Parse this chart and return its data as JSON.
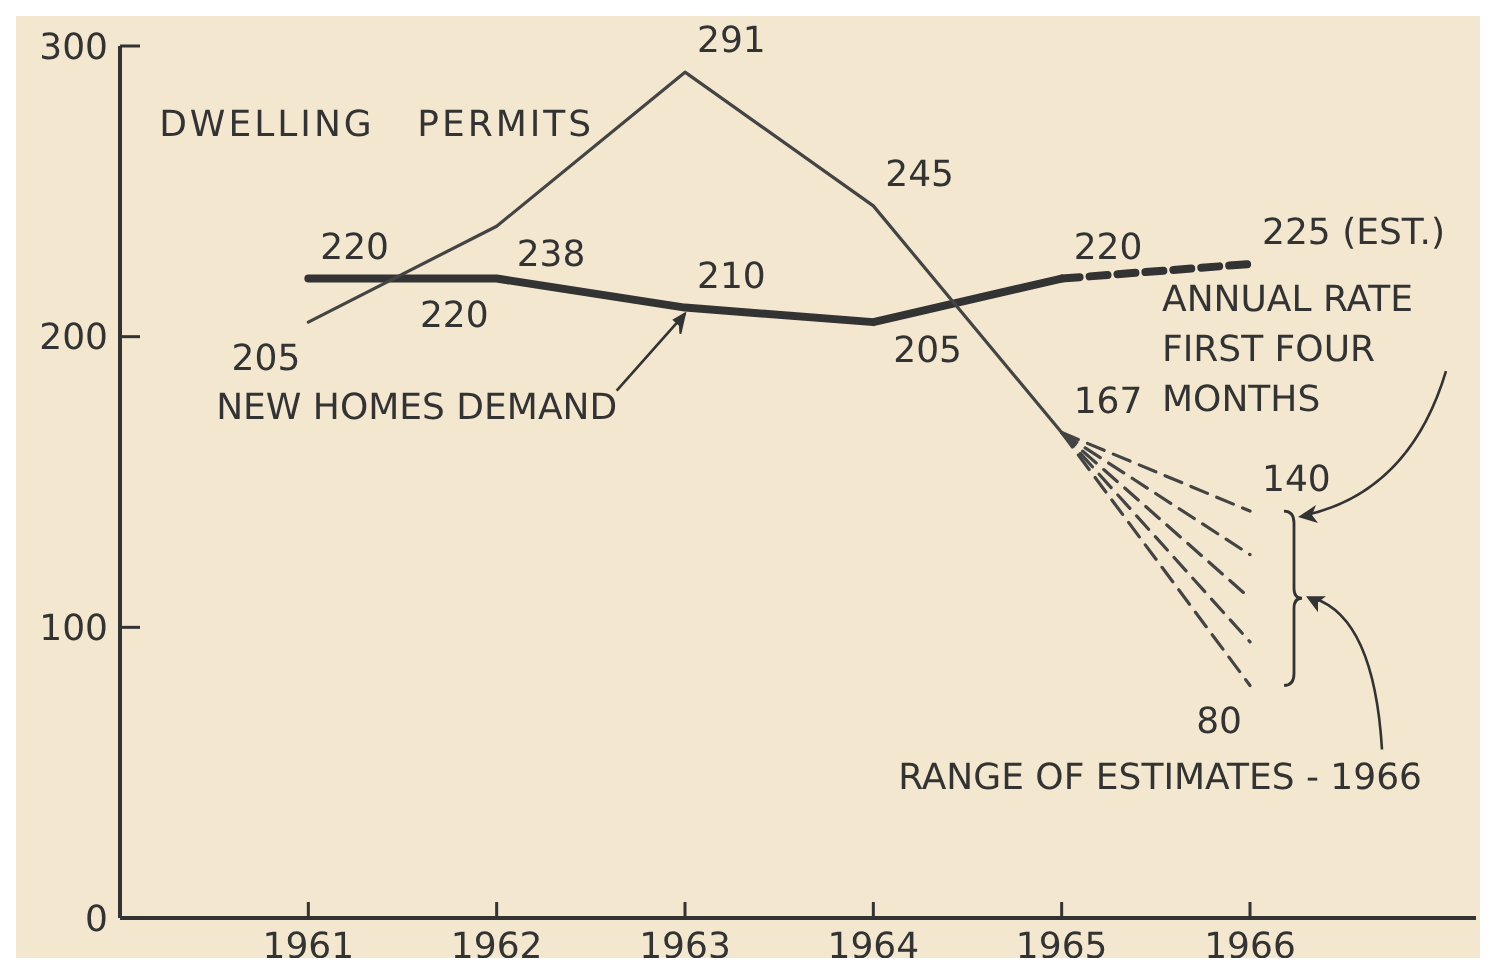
{
  "chart_data": {
    "type": "line",
    "x": [
      1961,
      1962,
      1963,
      1964,
      1965,
      1966
    ],
    "xlim": [
      1960,
      1967.2
    ],
    "xticks": [
      1961,
      1962,
      1963,
      1964,
      1965,
      1966
    ],
    "ylim": [
      0,
      300
    ],
    "yticks": [
      0,
      100,
      200,
      300
    ],
    "grid": false,
    "marker": "none",
    "series": [
      {
        "name": "NEW HOMES DEMAND",
        "color": "#333333",
        "line_style": "solid",
        "values": [
          220,
          220,
          210,
          205,
          220,
          null
        ],
        "value_labels": [
          "220",
          "220",
          "210",
          "205",
          "220",
          null
        ]
      },
      {
        "color": "#333333",
        "line_style": "dashed",
        "values": [
          null,
          null,
          null,
          null,
          220,
          225
        ],
        "value_labels": [
          null,
          null,
          null,
          null,
          null,
          "225 (EST.)"
        ]
      },
      {
        "name": "DWELLING PERMITS",
        "color": "#444444",
        "line_style": "solid",
        "values": [
          205,
          238,
          291,
          245,
          167,
          null
        ],
        "value_labels": [
          "205",
          "238",
          "291",
          "245",
          "167",
          null
        ]
      },
      {
        "color": "#444444",
        "line_style": "dashed",
        "values": [
          null,
          null,
          null,
          null,
          167,
          140
        ],
        "value_labels": [
          null,
          null,
          null,
          null,
          null,
          "140"
        ]
      },
      {
        "color": "#444444",
        "line_style": "dashed",
        "values": [
          null,
          null,
          null,
          null,
          167,
          125
        ]
      },
      {
        "color": "#444444",
        "line_style": "dashed",
        "values": [
          null,
          null,
          null,
          null,
          167,
          110
        ]
      },
      {
        "color": "#444444",
        "line_style": "dashed",
        "values": [
          null,
          null,
          null,
          null,
          167,
          95
        ]
      },
      {
        "color": "#444444",
        "line_style": "dashed",
        "values": [
          null,
          null,
          null,
          null,
          167,
          80
        ],
        "value_labels": [
          null,
          null,
          null,
          null,
          null,
          "80"
        ]
      }
    ],
    "annotations": [
      "ANNUAL RATE FIRST FOUR MONTHS",
      "RANGE OF ESTIMATES - 1966"
    ]
  }
}
